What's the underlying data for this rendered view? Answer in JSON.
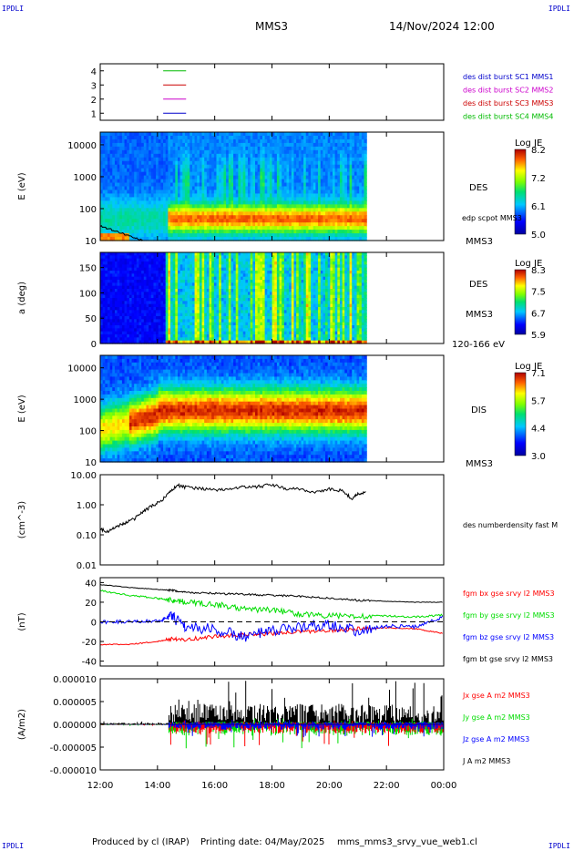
{
  "header": {
    "corner_tl": "IPDLI",
    "corner_tr": "IPDLI",
    "corner_bl": "IPDLI",
    "corner_br": "IPDLI",
    "spacecraft": "MMS3",
    "datetime": "14/Nov/2024 12:00"
  },
  "footer": {
    "produced_by": "Produced by cl (IRAP)",
    "printing_date": "Printing date: 04/May/2025",
    "script_name": "mms_mms3_srvy_vue_web1.cl"
  },
  "colors": {
    "black": "#000000",
    "red": "#ff0000",
    "green": "#00dd00",
    "blue": "#0000ff",
    "magenta": "#cc00cc",
    "legend_blue": "#0000cc",
    "legend_magenta": "#cc00cc",
    "legend_red": "#cc0000",
    "legend_green": "#00bb00"
  },
  "chart_data": [
    {
      "type": "line",
      "panel": "burst_flags",
      "yticks": [
        "1",
        "2",
        "3",
        "4"
      ],
      "ylim": [
        0.5,
        4.5
      ],
      "series": [
        {
          "name": "des dist burst SC1 MMS1",
          "color": "#0000cc",
          "flag_y": 1
        },
        {
          "name": "des dist burst SC2 MMS2",
          "color": "#cc00cc",
          "flag_y": 2
        },
        {
          "name": "des dist burst SC3 MMS3",
          "color": "#cc0000",
          "flag_y": 3
        },
        {
          "name": "des dist burst SC4 MMS4",
          "color": "#00bb00",
          "flag_y": 4
        }
      ],
      "flag_x_hours": [
        14.2,
        15.0
      ]
    },
    {
      "type": "heatmap",
      "panel": "des_energy",
      "ylabel": "E (eV)",
      "yscale": "log",
      "ylim": [
        10,
        25000
      ],
      "yticks": [
        "10",
        "100",
        "1000",
        "10000"
      ],
      "labels": [
        "DES",
        "edp scpot MMS3",
        "MMS3"
      ],
      "colorbar": {
        "title": "Log JE",
        "ticks": [
          "8.2",
          "7.2",
          "6.1",
          "5.0"
        ],
        "range": [
          5.0,
          8.2
        ]
      },
      "data_end_hour": 21.3
    },
    {
      "type": "heatmap",
      "panel": "des_pitch",
      "ylabel": "a (deg)",
      "ylim": [
        0,
        180
      ],
      "yticks": [
        "0",
        "50",
        "100",
        "150"
      ],
      "labels": [
        "DES",
        "MMS3",
        "120-166 eV"
      ],
      "colorbar": {
        "title": "Log JE",
        "ticks": [
          "8.3",
          "7.5",
          "6.7",
          "5.9"
        ],
        "range": [
          5.9,
          8.3
        ]
      },
      "data_end_hour": 21.3
    },
    {
      "type": "heatmap",
      "panel": "dis_energy",
      "ylabel": "E (eV)",
      "yscale": "log",
      "ylim": [
        10,
        25000
      ],
      "yticks": [
        "10",
        "100",
        "1000",
        "10000"
      ],
      "labels": [
        "DIS",
        "MMS3"
      ],
      "colorbar": {
        "title": "Log JE",
        "ticks": [
          "7.1",
          "5.7",
          "4.4",
          "3.0"
        ],
        "range": [
          3.0,
          7.1
        ]
      },
      "data_end_hour": 21.3
    },
    {
      "type": "line",
      "panel": "density",
      "ylabel": "(cm^-3)",
      "yscale": "log",
      "ylim": [
        0.01,
        10.0
      ],
      "yticks": [
        "0.01",
        "0.10",
        "1.00",
        "10.00"
      ],
      "series": [
        {
          "name": "des numberdensity fast M",
          "color": "#000000",
          "x_hours": [
            12.0,
            12.3,
            12.6,
            12.9,
            13.2,
            13.5,
            13.8,
            14.1,
            14.4,
            14.7,
            15.0,
            15.5,
            16.0,
            16.5,
            17.0,
            17.5,
            18.0,
            18.5,
            19.0,
            19.5,
            20.0,
            20.5,
            20.8,
            21.0,
            21.3
          ],
          "values": [
            0.15,
            0.13,
            0.2,
            0.25,
            0.35,
            0.6,
            0.9,
            1.3,
            2.5,
            4.5,
            3.8,
            3.6,
            3.0,
            3.4,
            3.9,
            4.0,
            4.6,
            3.4,
            3.3,
            2.6,
            3.3,
            2.9,
            1.5,
            2.3,
            2.5
          ]
        }
      ]
    },
    {
      "type": "line",
      "panel": "magnetic_field",
      "ylabel": "(nT)",
      "ylim": [
        -45,
        45
      ],
      "yticks": [
        "-40",
        "-20",
        "0",
        "20",
        "40"
      ],
      "series": [
        {
          "name": "fgm bx gse srvy l2 MMS3",
          "color": "#ff0000",
          "x_hours": [
            12,
            13,
            14,
            14.5,
            15,
            16,
            17,
            18,
            19,
            20,
            21,
            22,
            23,
            24
          ],
          "values": [
            -23,
            -23,
            -20,
            -17,
            -18,
            -15,
            -13,
            -12,
            -10,
            -9,
            -7,
            -6,
            -7,
            -12
          ]
        },
        {
          "name": "fgm by gse srvy l2 MMS3",
          "color": "#00dd00",
          "x_hours": [
            12,
            13,
            14,
            14.5,
            15,
            16,
            17,
            18,
            19,
            20,
            21,
            22,
            23,
            24
          ],
          "values": [
            32,
            27,
            24,
            22,
            20,
            18,
            13,
            12,
            8,
            6,
            6,
            6,
            5,
            7
          ]
        },
        {
          "name": "fgm bz gse srvy l2 MMS3",
          "color": "#0000ff",
          "x_hours": [
            12,
            13,
            14,
            14.5,
            15,
            16,
            17,
            18,
            19,
            20,
            21,
            22,
            23,
            24
          ],
          "values": [
            0,
            0,
            1,
            5,
            -5,
            -8,
            -15,
            -10,
            -5,
            -2,
            -10,
            -4,
            -5,
            5
          ]
        },
        {
          "name": "fgm bt gse srvy l2 MMS3",
          "color": "#000000",
          "x_hours": [
            12,
            13,
            14,
            14.5,
            15,
            16,
            17,
            18,
            19,
            20,
            21,
            22,
            23,
            24
          ],
          "values": [
            38,
            35,
            33,
            32,
            30,
            29,
            28,
            27,
            26,
            24,
            22,
            21,
            20,
            20
          ]
        }
      ]
    },
    {
      "type": "line",
      "panel": "current_density",
      "ylabel": "(A/m2)",
      "ylim": [
        -1e-05,
        1e-05
      ],
      "yticks": [
        "-0.000010",
        "-0.000005",
        "0.000000",
        "0.000005",
        "0.000010"
      ],
      "series": [
        {
          "name": "Jx gse A m2 MMS3",
          "color": "#ff0000"
        },
        {
          "name": "Jy gse A m2 MMS3",
          "color": "#00dd00"
        },
        {
          "name": "Jz gse A m2 MMS3",
          "color": "#0000ff"
        },
        {
          "name": "J A m2 MMS3",
          "color": "#000000"
        }
      ],
      "activity_start_hour": 14.4
    }
  ],
  "time_axis": {
    "xlim_hours": [
      12,
      24
    ],
    "ticks": [
      "12:00",
      "14:00",
      "16:00",
      "18:00",
      "20:00",
      "22:00",
      "00:00"
    ]
  }
}
